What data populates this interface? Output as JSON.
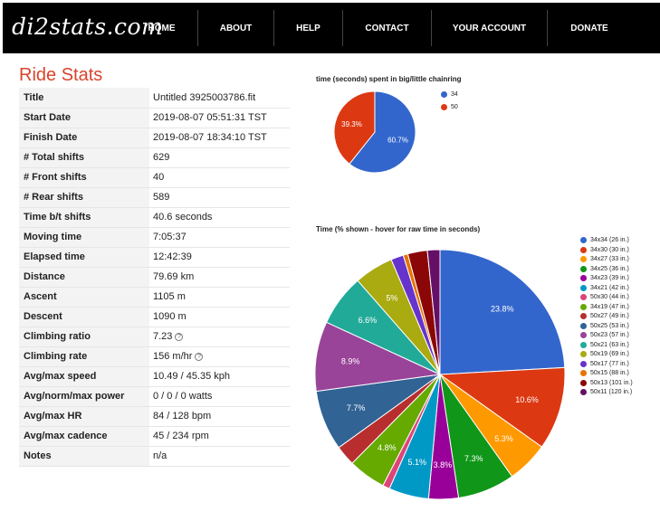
{
  "header": {
    "logo": "di2stats.com",
    "nav": [
      {
        "label": "HOME"
      },
      {
        "label": "ABOUT"
      },
      {
        "label": "HELP"
      },
      {
        "label": "CONTACT"
      },
      {
        "label": "YOUR ACCOUNT"
      },
      {
        "label": "DONATE"
      }
    ]
  },
  "page_title": "Ride Stats",
  "stats": [
    {
      "label": "Title",
      "value": "Untitled 3925003786.fit"
    },
    {
      "label": "Start Date",
      "value": "2019-08-07 05:51:31 TST"
    },
    {
      "label": "Finish Date",
      "value": "2019-08-07 18:34:10 TST"
    },
    {
      "label": "# Total shifts",
      "value": "629"
    },
    {
      "label": "# Front shifts",
      "value": "40"
    },
    {
      "label": "# Rear shifts",
      "value": "589"
    },
    {
      "label": "Time b/t shifts",
      "value": "40.6 seconds"
    },
    {
      "label": "Moving time",
      "value": "7:05:37"
    },
    {
      "label": "Elapsed time",
      "value": "12:42:39"
    },
    {
      "label": "Distance",
      "value": "79.69 km"
    },
    {
      "label": "Ascent",
      "value": "1105 m"
    },
    {
      "label": "Descent",
      "value": "1090 m"
    },
    {
      "label": "Climbing ratio",
      "value": "7.23",
      "help": "?"
    },
    {
      "label": "Climbing rate",
      "value": "156 m/hr",
      "help": "?"
    },
    {
      "label": "Avg/max speed",
      "value": "10.49 / 45.35 kph"
    },
    {
      "label": "Avg/norm/max power",
      "value": "0 / 0 / 0 watts"
    },
    {
      "label": "Avg/max HR",
      "value": "84 / 128 bpm"
    },
    {
      "label": "Avg/max cadence",
      "value": "45 / 234 rpm"
    },
    {
      "label": "Notes",
      "value": "n/a"
    }
  ],
  "chart_data": [
    {
      "type": "pie",
      "title": "time (seconds) spent in big/little chainring",
      "slices": [
        {
          "label": "34",
          "value": 60.7,
          "display": "60.7%",
          "color": "#3366cc"
        },
        {
          "label": "50",
          "value": 39.3,
          "display": "39.3%",
          "color": "#dc3912"
        }
      ]
    },
    {
      "type": "pie",
      "title": "Time (% shown - hover for raw time in seconds)",
      "slices": [
        {
          "label": "34x34 (26 in.)",
          "value": 23.8,
          "display": "23.8%",
          "color": "#3366cc"
        },
        {
          "label": "34x30 (30 in.)",
          "value": 10.6,
          "display": "10.6%",
          "color": "#dc3912"
        },
        {
          "label": "34x27 (33 in.)",
          "value": 5.3,
          "display": "5.3%",
          "color": "#ff9900"
        },
        {
          "label": "34x25 (36 in.)",
          "value": 7.3,
          "display": "7.3%",
          "color": "#109618"
        },
        {
          "label": "34x23 (39 in.)",
          "value": 3.8,
          "display": "3.8%",
          "color": "#990099"
        },
        {
          "label": "34x21 (42 in.)",
          "value": 5.1,
          "display": "5.1%",
          "color": "#0099c6"
        },
        {
          "label": "50x30 (44 in.)",
          "value": 0.9,
          "display": "",
          "color": "#dd4477"
        },
        {
          "label": "34x19 (47 in.)",
          "value": 4.8,
          "display": "4.8%",
          "color": "#66aa00"
        },
        {
          "label": "50x27 (49 in.)",
          "value": 2.6,
          "display": "",
          "color": "#b82e2e"
        },
        {
          "label": "50x25 (53 in.)",
          "value": 7.7,
          "display": "7.7%",
          "color": "#316395"
        },
        {
          "label": "50x23 (57 in.)",
          "value": 8.9,
          "display": "8.9%",
          "color": "#994499"
        },
        {
          "label": "50x21 (63 in.)",
          "value": 6.6,
          "display": "6.6%",
          "color": "#22aa99"
        },
        {
          "label": "50x19 (69 in.)",
          "value": 5.0,
          "display": "5%",
          "color": "#aaaa11"
        },
        {
          "label": "50x17 (77 in.)",
          "value": 1.6,
          "display": "",
          "color": "#6633cc"
        },
        {
          "label": "50x15 (88 in.)",
          "value": 0.6,
          "display": "",
          "color": "#e67300"
        },
        {
          "label": "50x13 (101 in.)",
          "value": 2.5,
          "display": "",
          "color": "#8b0707"
        },
        {
          "label": "50x11 (120 in.)",
          "value": 1.6,
          "display": "",
          "color": "#651067"
        }
      ]
    }
  ]
}
